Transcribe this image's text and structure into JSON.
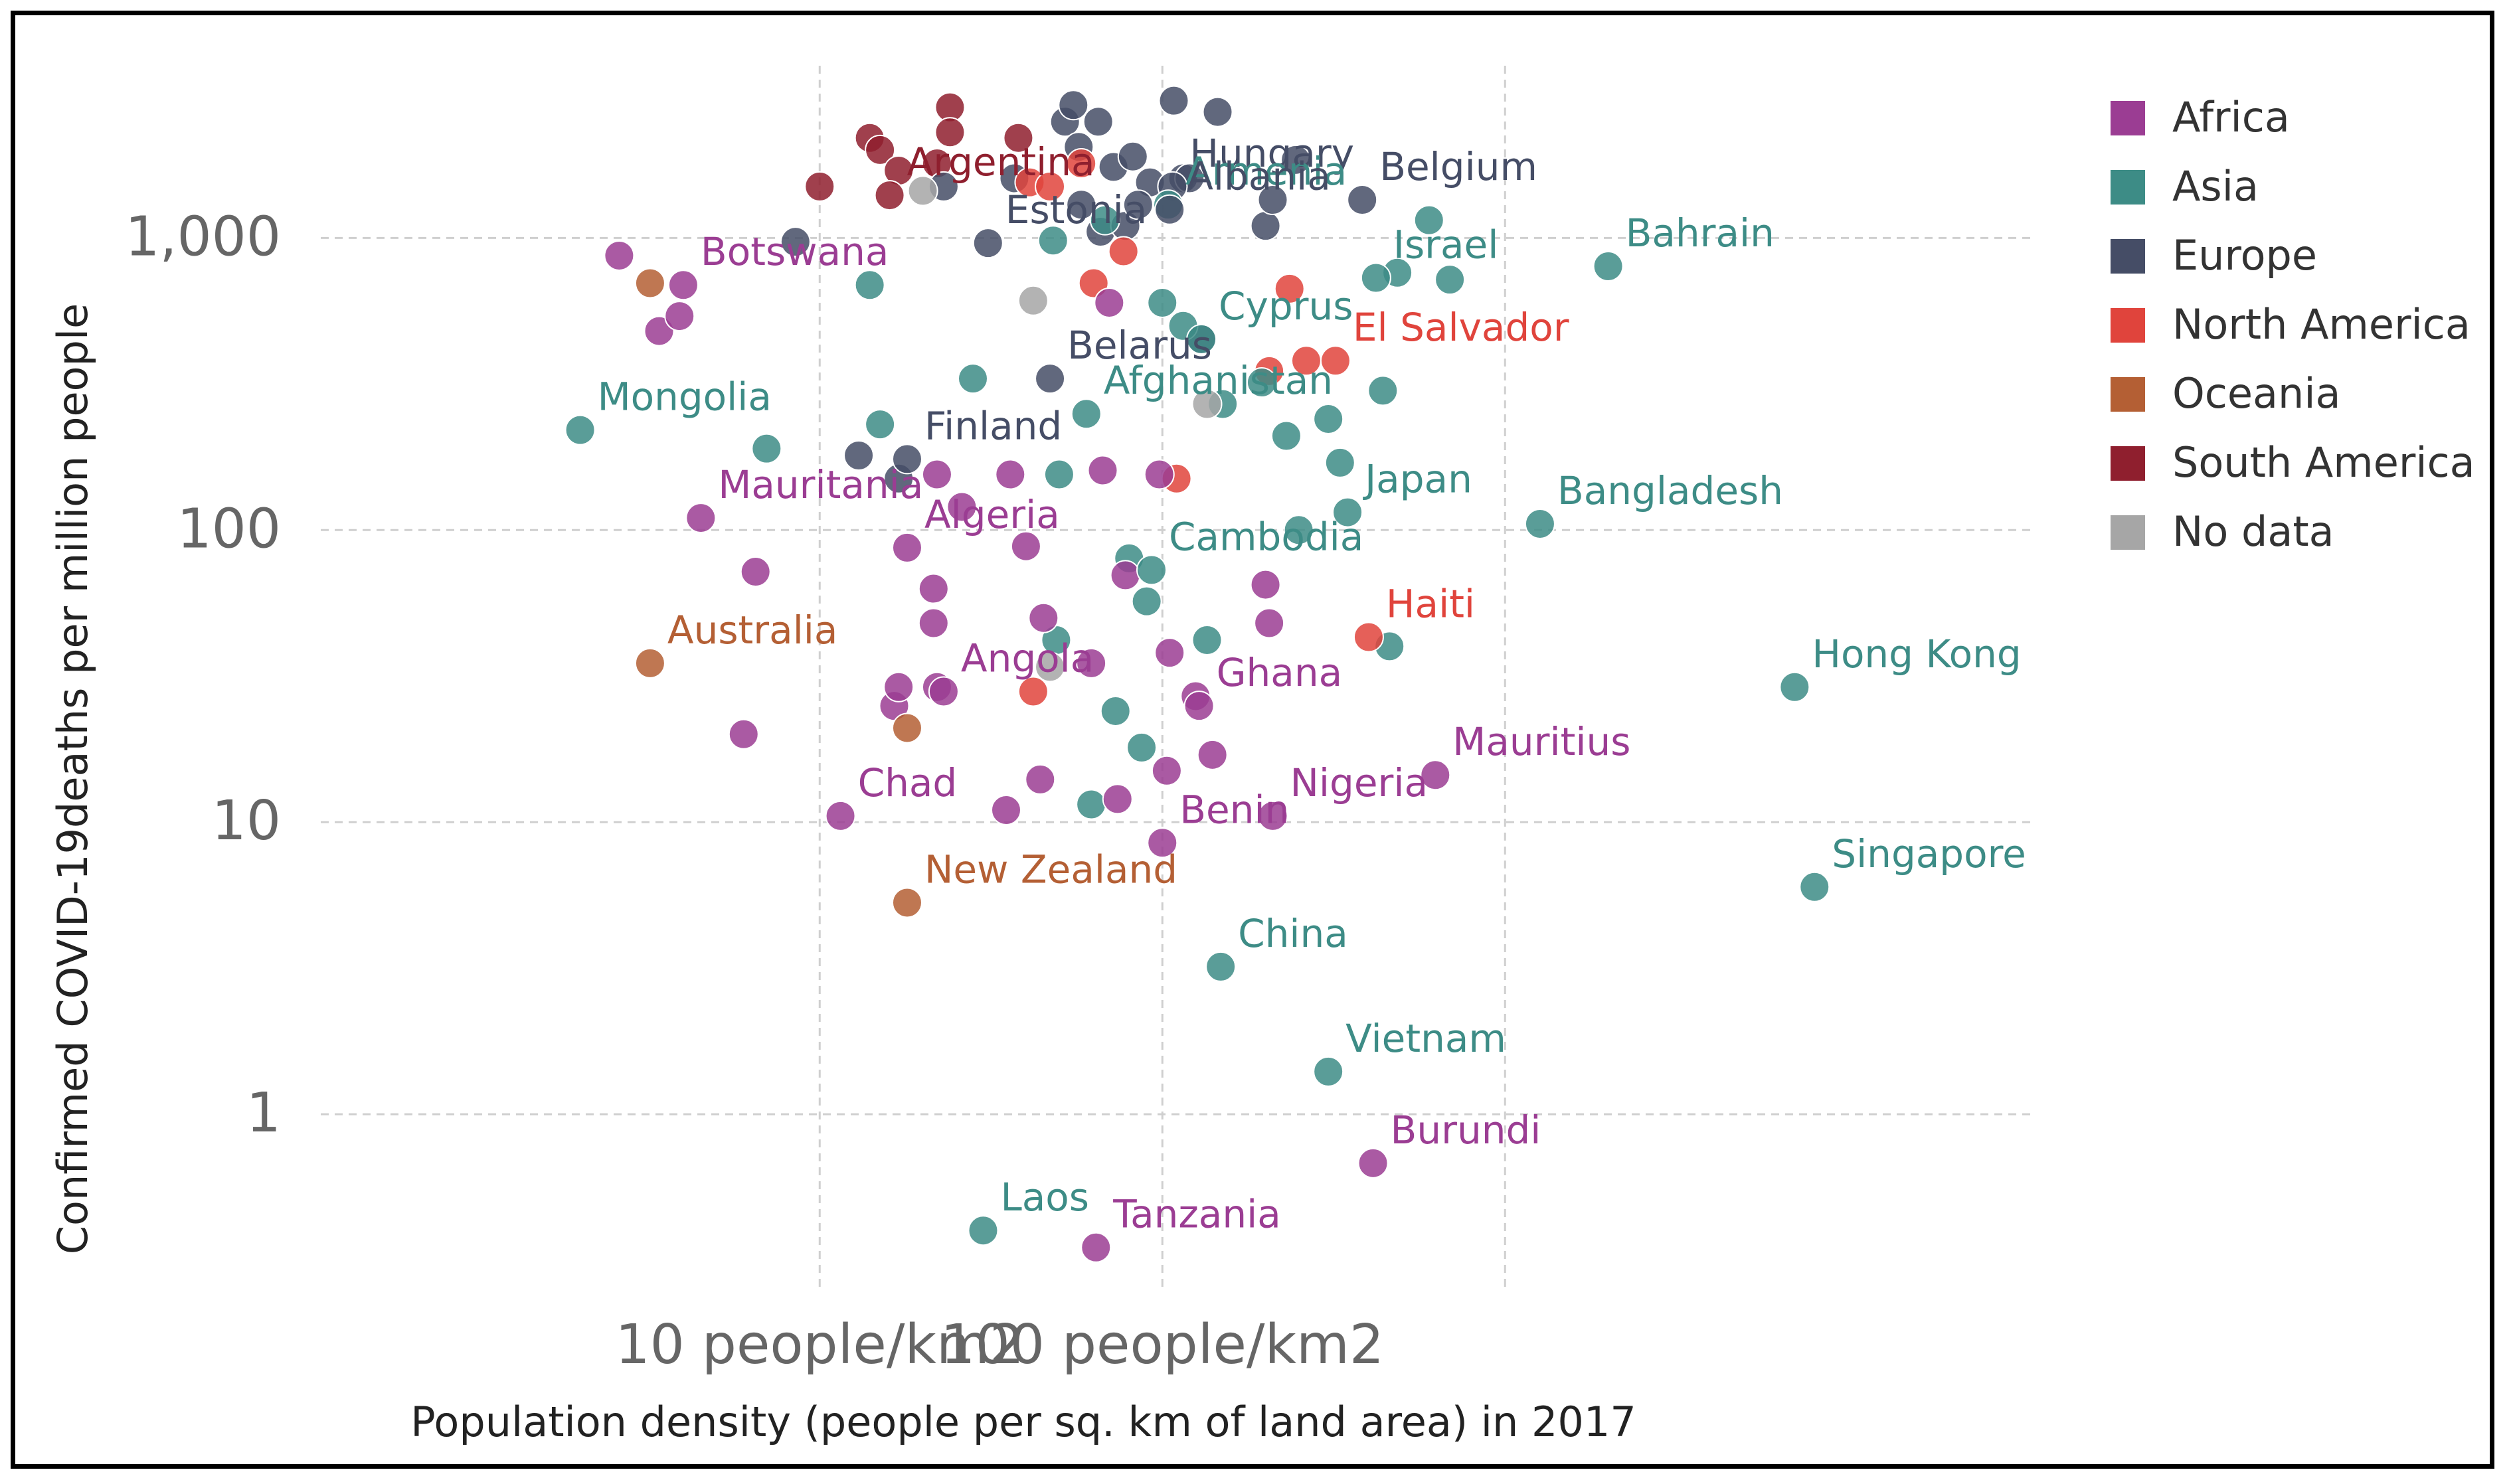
{
  "chart_data": {
    "type": "scatter",
    "xlabel": "Population density (people per sq. km of land area) in 2017",
    "ylabel": "Confirmed COVID-19deaths per million people",
    "x_scale": "log",
    "y_scale": "log",
    "xlim": [
      0.35,
      35000
    ],
    "ylim": [
      0.25,
      3500
    ],
    "grid": true,
    "legend_position": "right",
    "x_ticks": [
      {
        "value": 10,
        "label": "10 people/km2"
      },
      {
        "value": 100,
        "label": "100 people/km2"
      }
    ],
    "x_grid_values": [
      10,
      100,
      1000
    ],
    "y_ticks": [
      {
        "value": 1,
        "label": "1"
      },
      {
        "value": 10,
        "label": "10"
      },
      {
        "value": 100,
        "label": "100"
      },
      {
        "value": 1000,
        "label": "1,000"
      }
    ],
    "series": [
      {
        "name": "Africa",
        "color": "#9b3d93"
      },
      {
        "name": "Asia",
        "color": "#3d8c86"
      },
      {
        "name": "Europe",
        "color": "#454d66"
      },
      {
        "name": "North America",
        "color": "#e0443c"
      },
      {
        "name": "Oceania",
        "color": "#b45f34"
      },
      {
        "name": "South America",
        "color": "#8f1f2e"
      },
      {
        "name": "No data",
        "color": "#a6a6a6"
      }
    ],
    "labeled_points": [
      {
        "label": "Hungary",
        "x": 107,
        "y": 1500,
        "group": "Europe"
      },
      {
        "label": "Belgium",
        "x": 383,
        "y": 1350,
        "group": "Europe"
      },
      {
        "label": "Argentina",
        "x": 16,
        "y": 1400,
        "group": "South America"
      },
      {
        "label": "Armenia",
        "x": 104,
        "y": 1300,
        "group": "Asia"
      },
      {
        "label": "Estonia",
        "x": 31,
        "y": 960,
        "group": "Europe"
      },
      {
        "label": "Albania",
        "x": 105,
        "y": 1250,
        "group": "Europe"
      },
      {
        "label": "Bahrain",
        "x": 2000,
        "y": 800,
        "group": "Asia"
      },
      {
        "label": "Israel",
        "x": 420,
        "y": 730,
        "group": "Asia"
      },
      {
        "label": "Botswana",
        "x": 4,
        "y": 690,
        "group": "Africa"
      },
      {
        "label": "Cyprus",
        "x": 130,
        "y": 450,
        "group": "Asia"
      },
      {
        "label": "El Salvador",
        "x": 320,
        "y": 380,
        "group": "North America"
      },
      {
        "label": "Belarus",
        "x": 47,
        "y": 330,
        "group": "Europe"
      },
      {
        "label": "Mongolia",
        "x": 2,
        "y": 220,
        "group": "Asia"
      },
      {
        "label": "Finland",
        "x": 18,
        "y": 175,
        "group": "Europe"
      },
      {
        "label": "Afghanistan",
        "x": 60,
        "y": 250,
        "group": "Asia"
      },
      {
        "label": "Mauritania",
        "x": 4.5,
        "y": 110,
        "group": "Africa"
      },
      {
        "label": "Japan",
        "x": 347,
        "y": 115,
        "group": "Asia"
      },
      {
        "label": "Bangladesh",
        "x": 1265,
        "y": 105,
        "group": "Asia"
      },
      {
        "label": "Algeria",
        "x": 18,
        "y": 87,
        "group": "Africa"
      },
      {
        "label": "Cambodia",
        "x": 93,
        "y": 73,
        "group": "Asia"
      },
      {
        "label": "Australia",
        "x": 3.2,
        "y": 35,
        "group": "Oceania"
      },
      {
        "label": "Haiti",
        "x": 400,
        "y": 43,
        "group": "North America"
      },
      {
        "label": "Angola",
        "x": 23,
        "y": 28,
        "group": "Africa"
      },
      {
        "label": "Ghana",
        "x": 128,
        "y": 25,
        "group": "Africa"
      },
      {
        "label": "Hong Kong",
        "x": 7000,
        "y": 29,
        "group": "Asia"
      },
      {
        "label": "Mauritius",
        "x": 626,
        "y": 14.5,
        "group": "Africa"
      },
      {
        "label": "Chad",
        "x": 11.5,
        "y": 10.5,
        "group": "Africa"
      },
      {
        "label": "Benin",
        "x": 100,
        "y": 8.5,
        "group": "Africa"
      },
      {
        "label": "Nigeria",
        "x": 210,
        "y": 10.5,
        "group": "Africa"
      },
      {
        "label": "Singapore",
        "x": 8000,
        "y": 6,
        "group": "Asia"
      },
      {
        "label": "New Zealand",
        "x": 18,
        "y": 5.3,
        "group": "Oceania"
      },
      {
        "label": "China",
        "x": 148,
        "y": 3.2,
        "group": "Asia"
      },
      {
        "label": "Vietnam",
        "x": 305,
        "y": 1.4,
        "group": "Asia"
      },
      {
        "label": "Burundi",
        "x": 412,
        "y": 0.68,
        "group": "Africa"
      },
      {
        "label": "Laos",
        "x": 30,
        "y": 0.4,
        "group": "Asia"
      },
      {
        "label": "Tanzania",
        "x": 64,
        "y": 0.35,
        "group": "Africa"
      }
    ],
    "unlabeled_points": [
      {
        "x": 24,
        "y": 2800,
        "group": "South America"
      },
      {
        "x": 10,
        "y": 1500,
        "group": "South America"
      },
      {
        "x": 14,
        "y": 2200,
        "group": "South America"
      },
      {
        "x": 15,
        "y": 2000,
        "group": "South America"
      },
      {
        "x": 17,
        "y": 1700,
        "group": "South America"
      },
      {
        "x": 22,
        "y": 1800,
        "group": "South America"
      },
      {
        "x": 24,
        "y": 2300,
        "group": "South America"
      },
      {
        "x": 38,
        "y": 2200,
        "group": "South America"
      },
      {
        "x": 8.5,
        "y": 970,
        "group": "Europe"
      },
      {
        "x": 23,
        "y": 1500,
        "group": "Europe"
      },
      {
        "x": 37,
        "y": 1600,
        "group": "Europe"
      },
      {
        "x": 52,
        "y": 2500,
        "group": "Europe"
      },
      {
        "x": 55,
        "y": 2850,
        "group": "Europe"
      },
      {
        "x": 57,
        "y": 2050,
        "group": "Europe"
      },
      {
        "x": 65,
        "y": 2500,
        "group": "Europe"
      },
      {
        "x": 72,
        "y": 1750,
        "group": "Europe"
      },
      {
        "x": 82,
        "y": 1900,
        "group": "Europe"
      },
      {
        "x": 92,
        "y": 1550,
        "group": "Europe"
      },
      {
        "x": 108,
        "y": 2950,
        "group": "Europe"
      },
      {
        "x": 145,
        "y": 2700,
        "group": "Europe"
      },
      {
        "x": 245,
        "y": 1850,
        "group": "Europe"
      },
      {
        "x": 58,
        "y": 1300,
        "group": "Europe"
      },
      {
        "x": 66,
        "y": 1050,
        "group": "Europe"
      },
      {
        "x": 78,
        "y": 1100,
        "group": "Europe"
      },
      {
        "x": 85,
        "y": 1300,
        "group": "Europe"
      },
      {
        "x": 115,
        "y": 1600,
        "group": "Europe"
      },
      {
        "x": 120,
        "y": 1600,
        "group": "Europe"
      },
      {
        "x": 200,
        "y": 1100,
        "group": "Europe"
      },
      {
        "x": 210,
        "y": 1350,
        "group": "Europe"
      },
      {
        "x": 130,
        "y": 450,
        "group": "Europe"
      },
      {
        "x": 17,
        "y": 150,
        "group": "Europe"
      },
      {
        "x": 13,
        "y": 180,
        "group": "Europe"
      },
      {
        "x": 41,
        "y": 1550,
        "group": "North America"
      },
      {
        "x": 47,
        "y": 1500,
        "group": "North America"
      },
      {
        "x": 58,
        "y": 1800,
        "group": "North America"
      },
      {
        "x": 63,
        "y": 700,
        "group": "North America"
      },
      {
        "x": 77,
        "y": 900,
        "group": "North America"
      },
      {
        "x": 205,
        "y": 350,
        "group": "North America"
      },
      {
        "x": 235,
        "y": 670,
        "group": "North America"
      },
      {
        "x": 263,
        "y": 380,
        "group": "North America"
      },
      {
        "x": 110,
        "y": 150,
        "group": "North America"
      },
      {
        "x": 42,
        "y": 28,
        "group": "North America"
      },
      {
        "x": 14,
        "y": 690,
        "group": "Asia"
      },
      {
        "x": 15,
        "y": 230,
        "group": "Asia"
      },
      {
        "x": 7,
        "y": 190,
        "group": "Asia"
      },
      {
        "x": 28,
        "y": 330,
        "group": "Asia"
      },
      {
        "x": 48,
        "y": 980,
        "group": "Asia"
      },
      {
        "x": 68,
        "y": 1150,
        "group": "Asia"
      },
      {
        "x": 100,
        "y": 600,
        "group": "Asia"
      },
      {
        "x": 115,
        "y": 500,
        "group": "Asia"
      },
      {
        "x": 150,
        "y": 270,
        "group": "Asia"
      },
      {
        "x": 195,
        "y": 320,
        "group": "Asia"
      },
      {
        "x": 230,
        "y": 210,
        "group": "Asia"
      },
      {
        "x": 305,
        "y": 240,
        "group": "Asia"
      },
      {
        "x": 330,
        "y": 170,
        "group": "Asia"
      },
      {
        "x": 485,
        "y": 760,
        "group": "Asia"
      },
      {
        "x": 600,
        "y": 1150,
        "group": "Asia"
      },
      {
        "x": 690,
        "y": 720,
        "group": "Asia"
      },
      {
        "x": 440,
        "y": 300,
        "group": "Asia"
      },
      {
        "x": 50,
        "y": 155,
        "group": "Asia"
      },
      {
        "x": 80,
        "y": 80,
        "group": "Asia"
      },
      {
        "x": 90,
        "y": 57,
        "group": "Asia"
      },
      {
        "x": 49,
        "y": 42,
        "group": "Asia"
      },
      {
        "x": 73,
        "y": 24,
        "group": "Asia"
      },
      {
        "x": 87,
        "y": 18,
        "group": "Asia"
      },
      {
        "x": 62,
        "y": 11.5,
        "group": "Asia"
      },
      {
        "x": 250,
        "y": 100,
        "group": "Asia"
      },
      {
        "x": 135,
        "y": 42,
        "group": "Asia"
      },
      {
        "x": 460,
        "y": 40,
        "group": "Asia"
      },
      {
        "x": 2.6,
        "y": 870,
        "group": "Africa"
      },
      {
        "x": 3.4,
        "y": 480,
        "group": "Africa"
      },
      {
        "x": 3.9,
        "y": 540,
        "group": "Africa"
      },
      {
        "x": 6.5,
        "y": 72,
        "group": "Africa"
      },
      {
        "x": 6,
        "y": 20,
        "group": "Africa"
      },
      {
        "x": 16.5,
        "y": 25,
        "group": "Africa"
      },
      {
        "x": 17,
        "y": 29,
        "group": "Africa"
      },
      {
        "x": 21.5,
        "y": 48,
        "group": "Africa"
      },
      {
        "x": 21.5,
        "y": 63,
        "group": "Africa"
      },
      {
        "x": 22,
        "y": 29,
        "group": "Africa"
      },
      {
        "x": 22,
        "y": 155,
        "group": "Africa"
      },
      {
        "x": 26,
        "y": 120,
        "group": "Africa"
      },
      {
        "x": 36,
        "y": 155,
        "group": "Africa"
      },
      {
        "x": 40,
        "y": 88,
        "group": "Africa"
      },
      {
        "x": 45,
        "y": 50,
        "group": "Africa"
      },
      {
        "x": 44,
        "y": 14,
        "group": "Africa"
      },
      {
        "x": 35,
        "y": 11,
        "group": "Africa"
      },
      {
        "x": 62,
        "y": 35,
        "group": "Africa"
      },
      {
        "x": 67,
        "y": 160,
        "group": "Africa"
      },
      {
        "x": 70,
        "y": 600,
        "group": "Africa"
      },
      {
        "x": 74,
        "y": 12,
        "group": "Africa"
      },
      {
        "x": 78,
        "y": 70,
        "group": "Africa"
      },
      {
        "x": 98,
        "y": 155,
        "group": "Africa"
      },
      {
        "x": 103,
        "y": 15,
        "group": "Africa"
      },
      {
        "x": 105,
        "y": 38,
        "group": "Africa"
      },
      {
        "x": 140,
        "y": 17,
        "group": "Africa"
      },
      {
        "x": 205,
        "y": 48,
        "group": "Africa"
      },
      {
        "x": 200,
        "y": 65,
        "group": "Africa"
      },
      {
        "x": 125,
        "y": 27,
        "group": "Africa"
      },
      {
        "x": 47,
        "y": 34,
        "group": "No data"
      },
      {
        "x": 42,
        "y": 610,
        "group": "No data"
      },
      {
        "x": 20,
        "y": 1450,
        "group": "No data"
      },
      {
        "x": 135,
        "y": 270,
        "group": "No data"
      },
      {
        "x": 3.2,
        "y": 700,
        "group": "Oceania"
      },
      {
        "x": 18,
        "y": 21,
        "group": "Oceania"
      }
    ]
  }
}
